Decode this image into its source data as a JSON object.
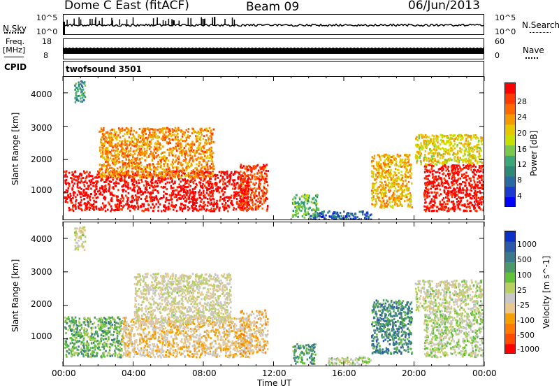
{
  "header": {
    "radar": "Dome C East (fitACF)",
    "beam": "Beam 09",
    "date": "06/Jun/2013"
  },
  "nsky_panel": {
    "left_label": "N.Sky",
    "left_ticks": [
      "10^5",
      "10^0"
    ],
    "right_ticks": [
      "10^5",
      "10^0"
    ],
    "right_label": "N.Search"
  },
  "freq_panel": {
    "left_label_top": "Freq.",
    "left_label_unit": "[MHz]",
    "left_ticks": [
      "18",
      "8"
    ],
    "right_ticks": [
      "60",
      "0"
    ],
    "right_label": "Nave"
  },
  "cpid_panel": {
    "left_label": "CPID",
    "program": "twofsound 3501"
  },
  "power_panel": {
    "ylabel": "Slant Range [km]",
    "yticks": [
      "4000",
      "3000",
      "2000",
      "1000"
    ],
    "colorbar_label": "Power [dB]",
    "colorbar_ticks": [
      "28",
      "24",
      "20",
      "16",
      "12",
      "8",
      "4"
    ],
    "colorbar_colors": [
      "#ff0000",
      "#ff3a00",
      "#ff6a00",
      "#f59a00",
      "#e6c800",
      "#c8e000",
      "#7cc84a",
      "#3aa878",
      "#2e8a78",
      "#2a6aa0",
      "#1a3ad0",
      "#0000ff"
    ]
  },
  "velocity_panel": {
    "ylabel": "Slant Range [km]",
    "yticks": [
      "4000",
      "3000",
      "2000",
      "1000"
    ],
    "colorbar_label": "Velocity [m s^-1]",
    "colorbar_ticks": [
      "1000",
      "500",
      "100",
      "25",
      "-25",
      "-100",
      "-500",
      "-1000"
    ],
    "colorbar_colors": [
      "#0a32c8",
      "#2a5aa8",
      "#3a7a8a",
      "#4c9a6a",
      "#62c23a",
      "#b8d060",
      "#c8c8c8",
      "#e8c890",
      "#f5a000",
      "#ff7a00",
      "#ff4a00",
      "#ff0000"
    ]
  },
  "xaxis": {
    "ticks": [
      "00:00",
      "04:00",
      "08:00",
      "12:00",
      "16:00",
      "20:00",
      "00:00"
    ],
    "label": "Time UT"
  },
  "chart_data": {
    "type": "heatmap",
    "x_range_hours": [
      0,
      24
    ],
    "y_range_km": [
      180,
      4500
    ],
    "panels": [
      {
        "name": "Power",
        "unit": "dB",
        "scale": [
          0,
          30
        ],
        "regions": [
          {
            "t": [
              0.0,
              10.5
            ],
            "r": [
              500,
              1700
            ],
            "value": 30
          },
          {
            "t": [
              10.0,
              11.6
            ],
            "r": [
              500,
              1900
            ],
            "value": 26
          },
          {
            "t": [
              2.0,
              8.5
            ],
            "r": [
              1500,
              3000
            ],
            "value": 22
          },
          {
            "t": [
              0.6,
              1.2
            ],
            "r": [
              3700,
              4400
            ],
            "value": 10
          },
          {
            "t": [
              13.0,
              14.5
            ],
            "r": [
              300,
              1000
            ],
            "value": 12
          },
          {
            "t": [
              14.0,
              17.5
            ],
            "r": [
              200,
              500
            ],
            "value": 6
          },
          {
            "t": [
              17.5,
              19.8
            ],
            "r": [
              600,
              2200
            ],
            "value": 20
          },
          {
            "t": [
              20.5,
              24.0
            ],
            "r": [
              500,
              1900
            ],
            "value": 29
          },
          {
            "t": [
              20.0,
              23.8
            ],
            "r": [
              1900,
              2800
            ],
            "value": 18
          }
        ]
      },
      {
        "name": "Velocity",
        "unit": "m s^-1",
        "scale": [
          -1000,
          1000
        ],
        "regions": [
          {
            "t": [
              0.0,
              3.3
            ],
            "r": [
              500,
              1700
            ],
            "value": 300
          },
          {
            "t": [
              3.3,
              10.7
            ],
            "r": [
              500,
              1700
            ],
            "value": -250
          },
          {
            "t": [
              4.0,
              9.5
            ],
            "r": [
              1500,
              3000
            ],
            "value": -80
          },
          {
            "t": [
              10.0,
              11.6
            ],
            "r": [
              600,
              1900
            ],
            "value": -300
          },
          {
            "t": [
              0.6,
              1.2
            ],
            "r": [
              3700,
              4400
            ],
            "value": -50
          },
          {
            "t": [
              13.0,
              14.3
            ],
            "r": [
              300,
              900
            ],
            "value": 400
          },
          {
            "t": [
              15.0,
              17.5
            ],
            "r": [
              200,
              500
            ],
            "value": 50
          },
          {
            "t": [
              17.5,
              19.8
            ],
            "r": [
              600,
              2200
            ],
            "value": 500
          },
          {
            "t": [
              20.5,
              24.0
            ],
            "r": [
              500,
              1900
            ],
            "value": 60
          },
          {
            "t": [
              20.0,
              23.8
            ],
            "r": [
              1900,
              2800
            ],
            "value": -30
          }
        ]
      }
    ]
  }
}
